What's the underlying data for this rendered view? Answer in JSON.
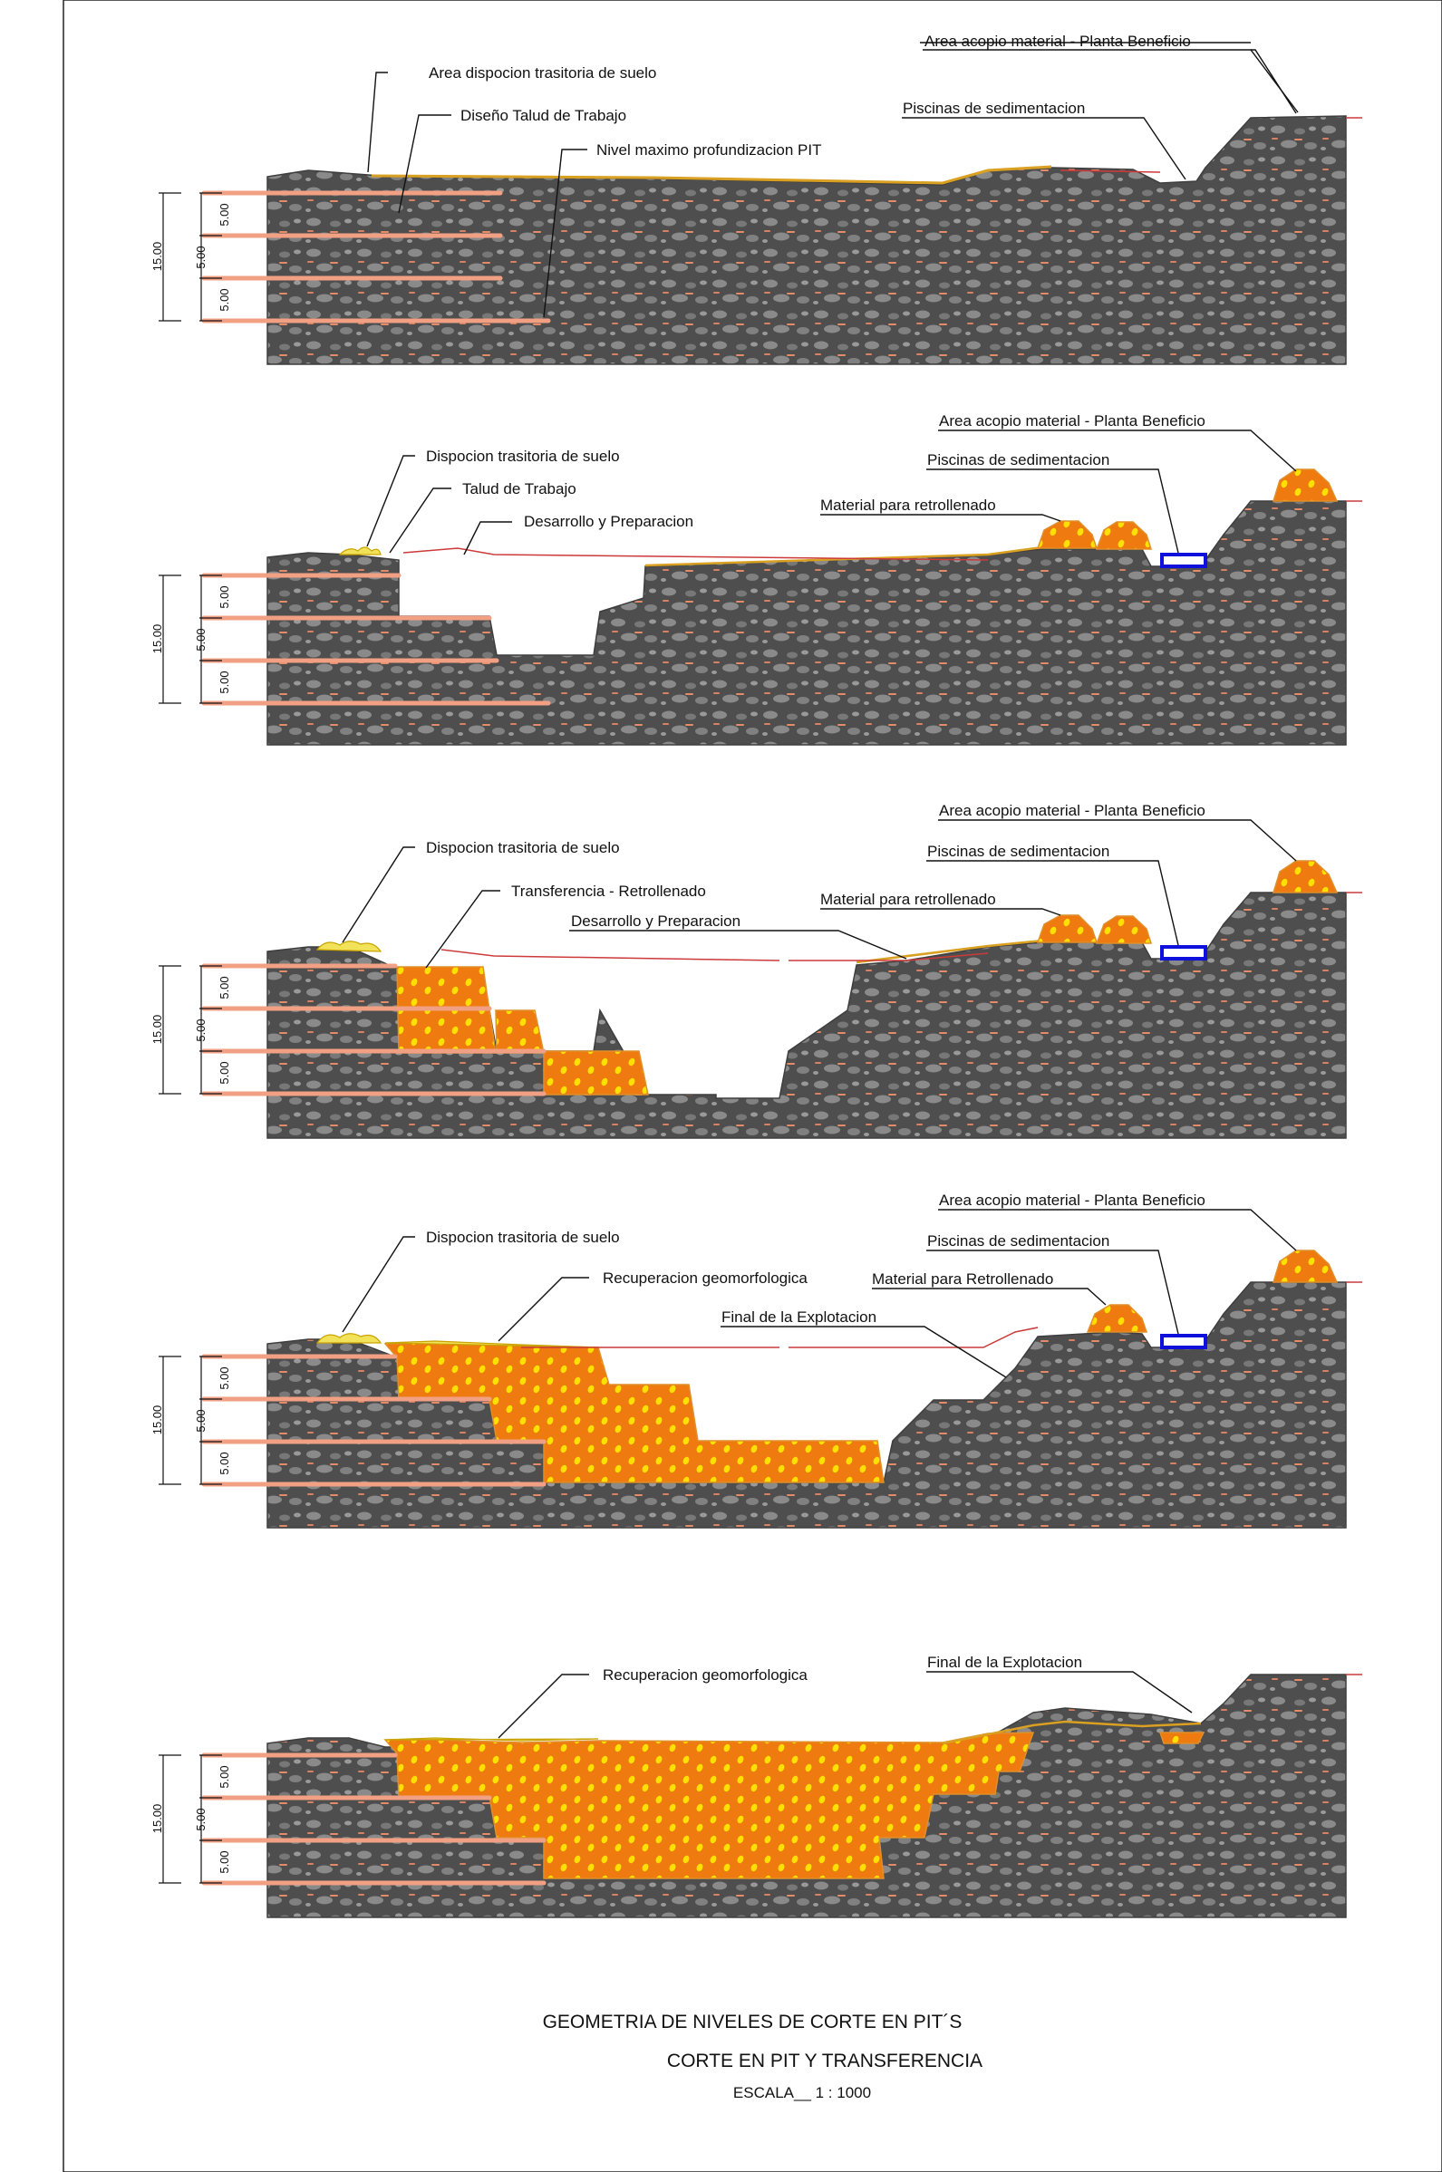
{
  "colors": {
    "rock": "#4e4e4e",
    "rock_pebble": "#8a8a8a",
    "ore": "#ee7a10",
    "ore_dot": "#ffe000",
    "level_line": "#f2a083",
    "pond": "#1010dd",
    "surface_red": "#cc3a3a"
  },
  "dimensions": {
    "total": "15.00",
    "bench": "5.00"
  },
  "sections": [
    {
      "labels": [
        "Area acopio material - Planta Beneficio",
        "Piscinas de sedimentacion",
        "Area dispocion trasitoria de suelo",
        "Diseño Talud de Trabajo",
        "Nivel maximo profundizacion PIT"
      ]
    },
    {
      "labels": [
        "Area acopio material - Planta Beneficio",
        "Dispocion trasitoria de suelo",
        "Piscinas de sedimentacion",
        "Talud de Trabajo",
        "Desarrollo y Preparacion",
        "Material para retrollenado"
      ]
    },
    {
      "labels": [
        "Area acopio material - Planta Beneficio",
        "Dispocion trasitoria de suelo",
        "Piscinas de sedimentacion",
        "Transferencia - Retrollenado",
        "Material para retrollenado",
        "Desarrollo y Preparacion"
      ]
    },
    {
      "labels": [
        "Area acopio material - Planta Beneficio",
        "Dispocion trasitoria de suelo",
        "Piscinas de sedimentacion",
        "Material para Retrollenado",
        "Recuperacion geomorfologica",
        "Final de la Explotacion"
      ]
    },
    {
      "labels": [
        "Recuperacion geomorfologica",
        "Final de la Explotacion"
      ]
    }
  ],
  "title_block": {
    "line1": "GEOMETRIA DE NIVELES  DE CORTE EN PIT´S",
    "line2": "CORTE EN PIT Y TRANSFERENCIA",
    "scale": "ESCALA__ 1 : 1000"
  }
}
